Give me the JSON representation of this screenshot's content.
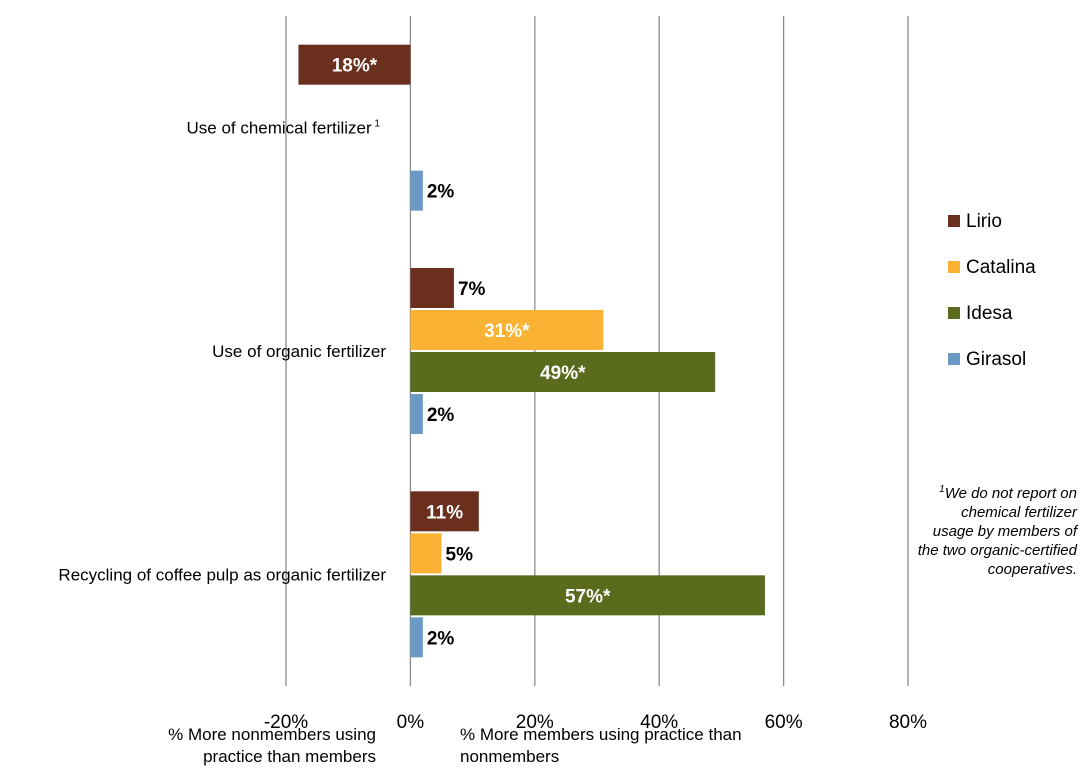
{
  "chart_data": {
    "type": "bar",
    "orientation": "horizontal",
    "categories": [
      "Use of chemical fertilizer",
      "Use of organic fertilizer",
      "Recycling of coffee pulp as organic fertilizer"
    ],
    "category_superscripts": [
      "1",
      "",
      ""
    ],
    "series": [
      {
        "name": "Lirio",
        "color": "#6b2f1e",
        "values": [
          -18,
          7,
          11
        ],
        "labels": [
          "18%*",
          "7%",
          "11%"
        ]
      },
      {
        "name": "Catalina",
        "color": "#f9b233",
        "values": [
          null,
          31,
          5
        ],
        "labels": [
          "",
          "31%*",
          "5%"
        ]
      },
      {
        "name": "Idesa",
        "color": "#5b6b1d",
        "values": [
          null,
          49,
          57
        ],
        "labels": [
          "",
          "49%*",
          "57%*"
        ]
      },
      {
        "name": "Girasol",
        "color": "#6a99c6",
        "values": [
          2,
          2,
          2
        ],
        "labels": [
          "2%",
          "2%",
          "2%"
        ]
      }
    ],
    "xlim": [
      -20,
      80
    ],
    "x_ticks": [
      -20,
      0,
      20,
      40,
      60,
      80
    ],
    "x_tick_labels": [
      "-20%",
      "0%",
      "20%",
      "40%",
      "60%",
      "80%"
    ],
    "grid": true,
    "legend_position": "right"
  },
  "axis_notes": {
    "left": "% More nonmembers using practice than members",
    "right": "% More members using practice than nonmembers"
  },
  "footnote": {
    "marker": "1",
    "text": "We do not report on chemical fertilizer usage by members of the two organic-certified cooperatives."
  }
}
